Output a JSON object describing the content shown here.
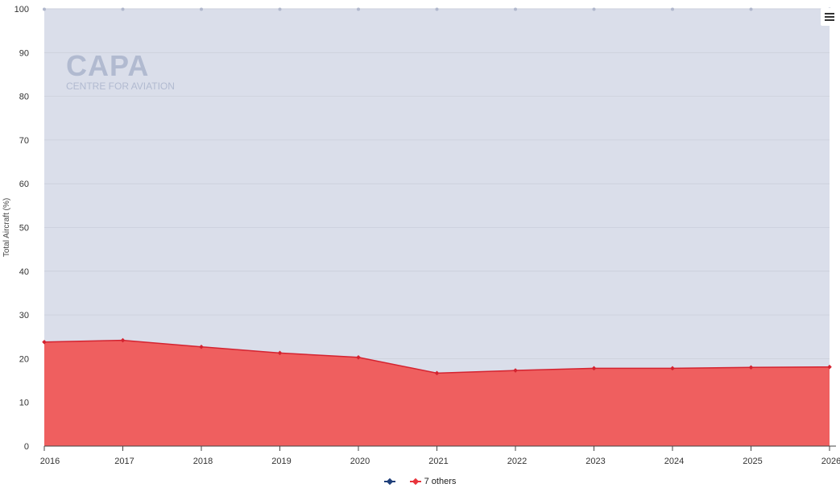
{
  "watermark": {
    "main": "CAPA",
    "sub": "CENTRE FOR AVIATION"
  },
  "menu": {
    "icon": "hamburger-icon"
  },
  "colors": {
    "plot_background": "#dadeea",
    "top_series": "#1f3f7a",
    "bottom_series_fill": "#ef5f5f",
    "bottom_series_line": "#d42330",
    "grid": "#c9cdd9"
  },
  "chart_data": {
    "type": "area",
    "stacking": "percent",
    "x": [
      "2016",
      "2017",
      "2018",
      "2019",
      "2020",
      "2021",
      "2022",
      "2023",
      "2024",
      "2025",
      "2026"
    ],
    "series": [
      {
        "name": "",
        "color": "#1f3f7a",
        "values": [
          76.2,
          75.8,
          77.3,
          78.7,
          79.7,
          83.3,
          82.7,
          82.2,
          82.2,
          82.0,
          81.9
        ]
      },
      {
        "name": "7 others",
        "color": "#e8343c",
        "values": [
          23.8,
          24.2,
          22.7,
          21.3,
          20.3,
          16.7,
          17.3,
          17.8,
          17.8,
          18.0,
          18.1
        ]
      }
    ],
    "ylabel": "Total Aircraft (%)",
    "xlabel": "",
    "ylim": [
      0,
      100
    ],
    "yticks": [
      0,
      10,
      20,
      30,
      40,
      50,
      60,
      70,
      80,
      90,
      100
    ],
    "grid": true,
    "legend": "bottom-center"
  }
}
